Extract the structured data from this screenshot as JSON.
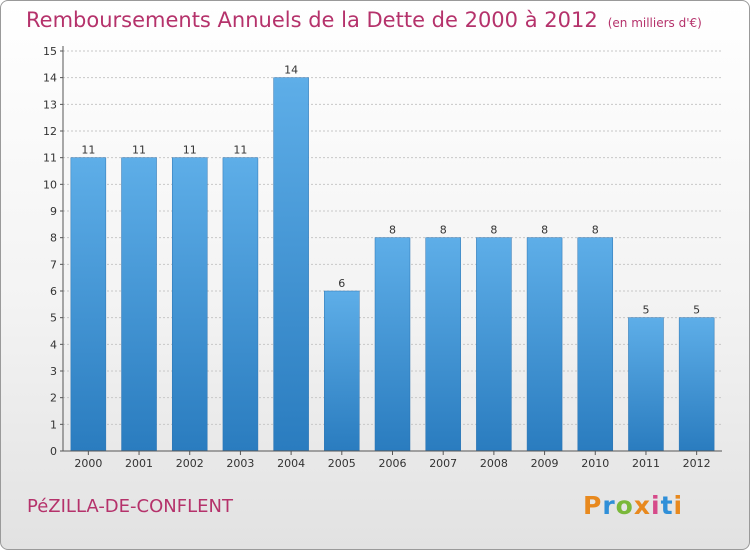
{
  "header": {
    "title": "Remboursements Annuels de la Dette de 2000 à 2012",
    "unit": "(en milliers d'€)"
  },
  "footer": {
    "place": "PéZILLA-DE-CONFLENT",
    "logo": "Proxiti",
    "logo_colors": [
      "#e8891e",
      "#2f8fd8",
      "#7ab83a",
      "#e8891e",
      "#d64a8a",
      "#2f8fd8",
      "#e8891e"
    ]
  },
  "colors": {
    "title": "#b5326b",
    "bar_top": "#5eaee8",
    "bar_bottom": "#2a7cbf",
    "grid": "#c7c7c7"
  },
  "chart_data": {
    "type": "bar",
    "title": "Remboursements Annuels de la Dette de 2000 à 2012",
    "subtitle": "(en milliers d'€)",
    "xlabel": "",
    "ylabel": "",
    "categories": [
      "2000",
      "2001",
      "2002",
      "2003",
      "2004",
      "2005",
      "2006",
      "2007",
      "2008",
      "2009",
      "2010",
      "2011",
      "2012"
    ],
    "values": [
      11,
      11,
      11,
      11,
      14,
      6,
      8,
      8,
      8,
      8,
      8,
      5,
      5
    ],
    "ylim": [
      0,
      15
    ],
    "yticks": [
      "0",
      "1",
      "2",
      "3",
      "4",
      "5",
      "6",
      "7",
      "8",
      "9",
      "10",
      "11",
      "12",
      "13",
      "14",
      "15"
    ],
    "grid": true
  }
}
